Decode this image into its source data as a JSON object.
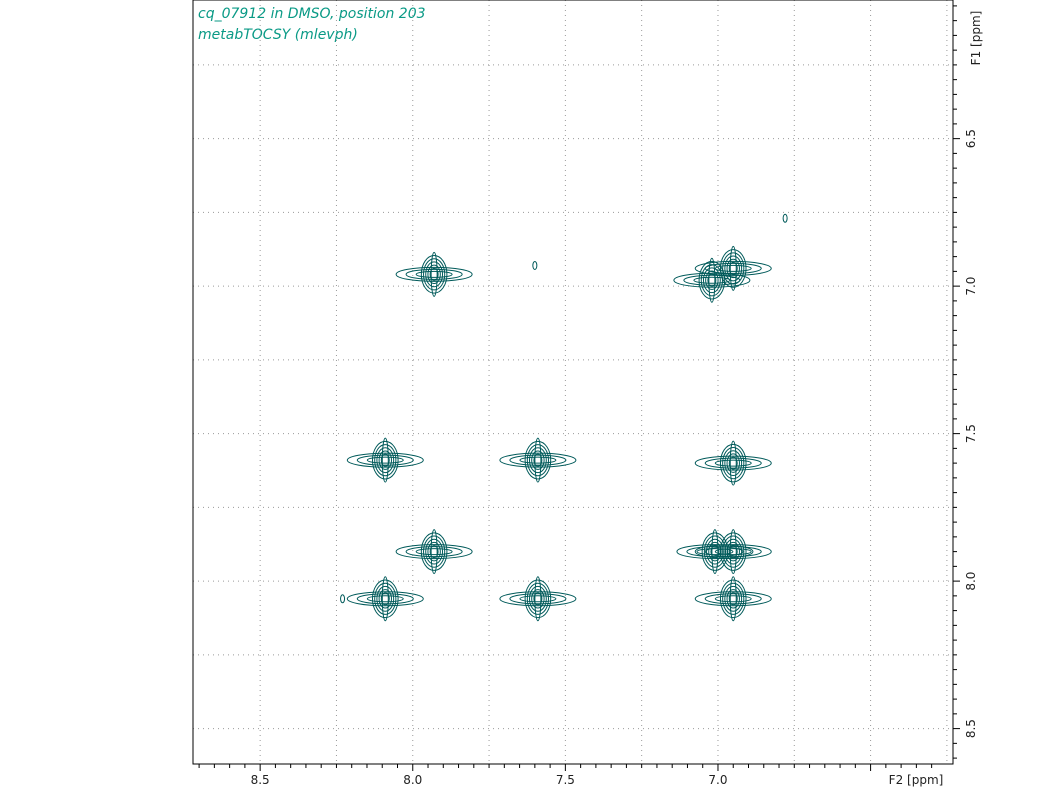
{
  "header": {
    "line1": "cq_07912 in DMSO, position 203",
    "line2": "metabTOCSY (mlevph)"
  },
  "chart_data": {
    "type": "contour",
    "title": "cq_07912 in DMSO, position 203",
    "subtitle": "metabTOCSY (mlevph)",
    "xlabel": "F2 [ppm]",
    "ylabel": "F1 [ppm]",
    "x_range_display": [
      8.72,
      6.23
    ],
    "y_range_display": [
      6.03,
      8.62
    ],
    "x_ticks": [
      8.5,
      8.0,
      7.5,
      7.0
    ],
    "x_tick_labels": [
      "8.5",
      "8.0",
      "7.5",
      "7.0"
    ],
    "y_ticks": [
      6.5,
      7.0,
      7.5,
      8.0,
      8.5
    ],
    "y_tick_labels": [
      "6.5",
      "7.0",
      "7.5",
      "8.0",
      "8.5"
    ],
    "grid": true,
    "contour_color": "#005a5a",
    "peaks": [
      {
        "f2": 7.93,
        "f1": 6.96
      },
      {
        "f2": 7.02,
        "f1": 6.98
      },
      {
        "f2": 6.95,
        "f1": 6.94
      },
      {
        "f2": 8.09,
        "f1": 7.59
      },
      {
        "f2": 7.59,
        "f1": 7.59
      },
      {
        "f2": 6.95,
        "f1": 7.6
      },
      {
        "f2": 7.93,
        "f1": 7.9
      },
      {
        "f2": 7.01,
        "f1": 7.9
      },
      {
        "f2": 6.95,
        "f1": 7.9
      },
      {
        "f2": 8.09,
        "f1": 8.06
      },
      {
        "f2": 7.59,
        "f1": 8.06
      },
      {
        "f2": 6.95,
        "f1": 8.06
      },
      {
        "f2": 6.78,
        "f1": 6.77
      },
      {
        "f2": 7.6,
        "f1": 6.93
      },
      {
        "f2": 8.23,
        "f1": 8.06
      }
    ]
  }
}
